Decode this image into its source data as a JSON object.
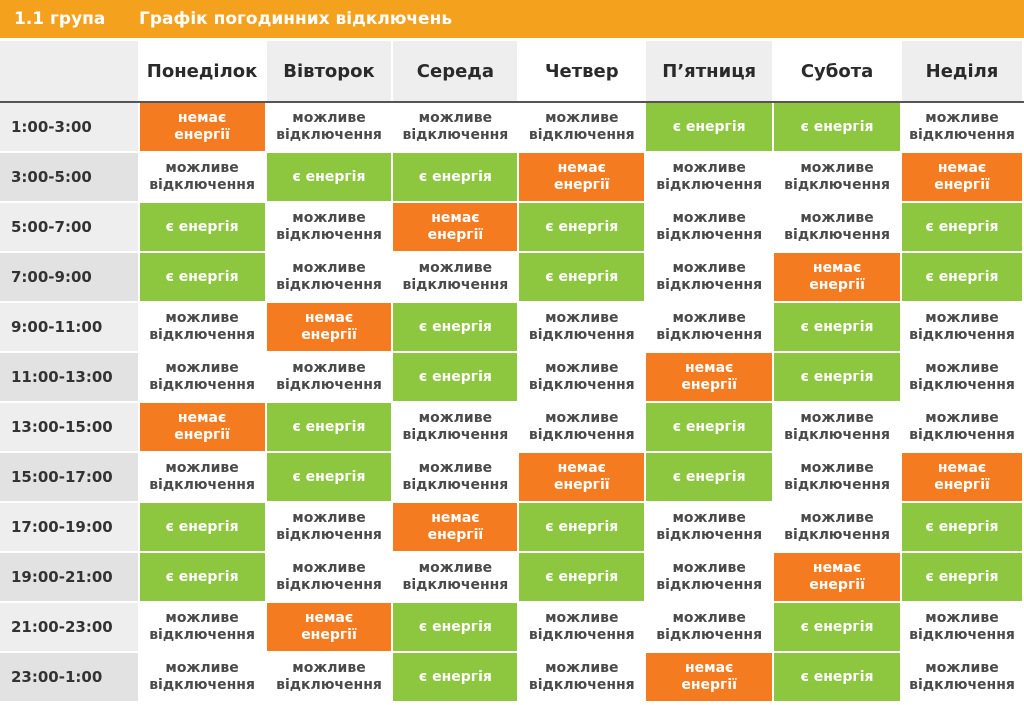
{
  "header": {
    "group": "1.1 група",
    "title": "Графік погодинних відключень"
  },
  "colors": {
    "header_bar": "#f4a21e",
    "no_power": "#f47b20",
    "power_on": "#8dc63f",
    "maybe": "#ffffff",
    "time_column": "#eeeeee"
  },
  "legend": {
    "off_line1": "немає",
    "off_line2": "енергії",
    "on": "є енергія",
    "maybe_line1": "можливе",
    "maybe_line2": "відключення"
  },
  "days": [
    "Понеділок",
    "Вівторок",
    "Середа",
    "Четвер",
    "П’ятниця",
    "Субота",
    "Неділя"
  ],
  "rows": [
    {
      "time": "1:00-3:00",
      "cells": [
        "off",
        "maybe",
        "maybe",
        "maybe",
        "on",
        "on",
        "maybe"
      ]
    },
    {
      "time": "3:00-5:00",
      "cells": [
        "maybe",
        "on",
        "on",
        "off",
        "maybe",
        "maybe",
        "off"
      ]
    },
    {
      "time": "5:00-7:00",
      "cells": [
        "on",
        "maybe",
        "off",
        "on",
        "maybe",
        "maybe",
        "on"
      ]
    },
    {
      "time": "7:00-9:00",
      "cells": [
        "on",
        "maybe",
        "maybe",
        "on",
        "maybe",
        "off",
        "on"
      ]
    },
    {
      "time": "9:00-11:00",
      "cells": [
        "maybe",
        "off",
        "on",
        "maybe",
        "maybe",
        "on",
        "maybe"
      ]
    },
    {
      "time": "11:00-13:00",
      "cells": [
        "maybe",
        "maybe",
        "on",
        "maybe",
        "off",
        "on",
        "maybe"
      ]
    },
    {
      "time": "13:00-15:00",
      "cells": [
        "off",
        "on",
        "maybe",
        "maybe",
        "on",
        "maybe",
        "maybe"
      ]
    },
    {
      "time": "15:00-17:00",
      "cells": [
        "maybe",
        "on",
        "maybe",
        "off",
        "on",
        "maybe",
        "off"
      ]
    },
    {
      "time": "17:00-19:00",
      "cells": [
        "on",
        "maybe",
        "off",
        "on",
        "maybe",
        "maybe",
        "on"
      ]
    },
    {
      "time": "19:00-21:00",
      "cells": [
        "on",
        "maybe",
        "maybe",
        "on",
        "maybe",
        "off",
        "on"
      ]
    },
    {
      "time": "21:00-23:00",
      "cells": [
        "maybe",
        "off",
        "on",
        "maybe",
        "maybe",
        "on",
        "maybe"
      ]
    },
    {
      "time": "23:00-1:00",
      "cells": [
        "maybe",
        "maybe",
        "on",
        "maybe",
        "off",
        "on",
        "maybe"
      ]
    }
  ]
}
